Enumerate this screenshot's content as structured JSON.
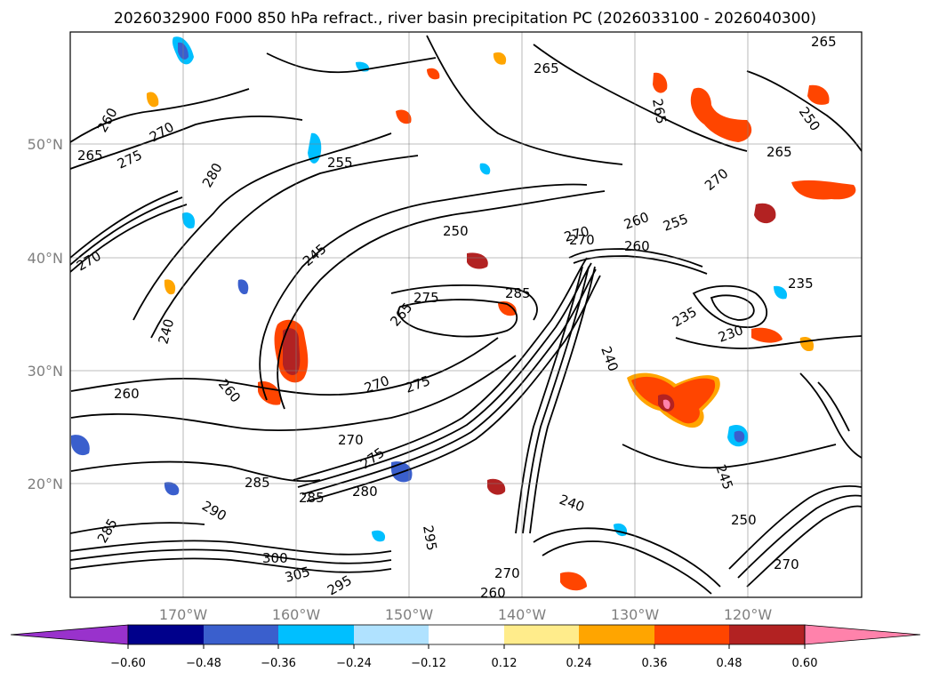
{
  "title": "2026032900 F000 850 hPa refract., river basin precipitation PC (2026033100 - 2026040300)",
  "lat_labels": [
    "50°N",
    "40°N",
    "30°N",
    "20°N"
  ],
  "lon_labels": [
    "170°W",
    "160°W",
    "150°W",
    "140°W",
    "130°W",
    "120°W"
  ],
  "colorbar": {
    "colors": [
      "#9932cc",
      "#00008b",
      "#3a5fcd",
      "#00bfff",
      "#b0e2ff",
      "#ffffff",
      "#ffec8b",
      "#ffa500",
      "#ff4500",
      "#b22222",
      "#ff82ab"
    ],
    "tick_labels": [
      "−0.60",
      "−0.48",
      "−0.36",
      "−0.24",
      "−0.12",
      "0.12",
      "0.24",
      "0.36",
      "0.48",
      "0.60"
    ]
  },
  "contour_labels": [
    "265",
    "265",
    "260",
    "270",
    "275",
    "280",
    "265",
    "255",
    "250",
    "245",
    "240",
    "260",
    "270",
    "275",
    "275",
    "270",
    "285",
    "265",
    "270",
    "275",
    "285",
    "285",
    "280",
    "295",
    "290",
    "285",
    "300",
    "305",
    "295",
    "270",
    "260",
    "240",
    "240",
    "250",
    "260",
    "270",
    "260",
    "255",
    "235",
    "230",
    "235",
    "245",
    "250",
    "265",
    "270",
    "270",
    "260",
    "265",
    "270"
  ],
  "shading_colors": {
    "pos_light": "#ffec8b",
    "pos_mid": "#ffa500",
    "pos_strong": "#ff4500",
    "pos_xstrong": "#b22222",
    "pos_max": "#ff82ab",
    "neg_light": "#b0e2ff",
    "neg_mid": "#00bfff",
    "neg_strong": "#3a5fcd",
    "neg_xstrong": "#00008b"
  }
}
